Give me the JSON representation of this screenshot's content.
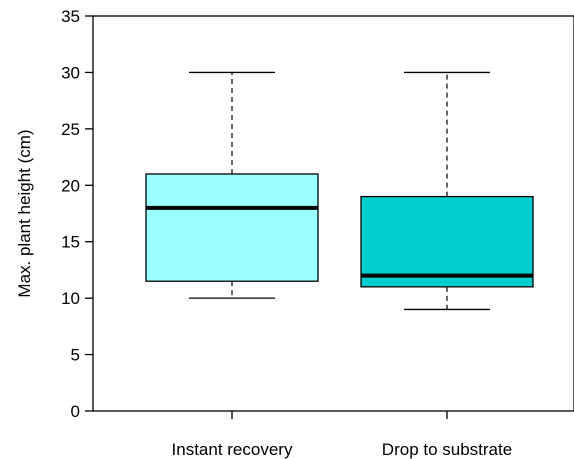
{
  "chart_data": {
    "type": "box",
    "title": "",
    "xlabel": "",
    "ylabel": "Max. plant height (cm)",
    "ylim": [
      0,
      35
    ],
    "yticks": [
      0,
      5,
      10,
      15,
      20,
      25,
      30,
      35
    ],
    "grid": false,
    "legend": "none",
    "categories": [
      "Instant recovery",
      "Drop to substrate"
    ],
    "boxes": [
      {
        "category": "Instant recovery",
        "whisker_low": 10,
        "q1": 11.5,
        "median": 18,
        "q3": 21,
        "whisker_high": 30,
        "fill": "#99ffff"
      },
      {
        "category": "Drop to substrate",
        "whisker_low": 9,
        "q1": 11,
        "median": 12,
        "q3": 19,
        "whisker_high": 30,
        "fill": "#00cdcd"
      }
    ]
  }
}
